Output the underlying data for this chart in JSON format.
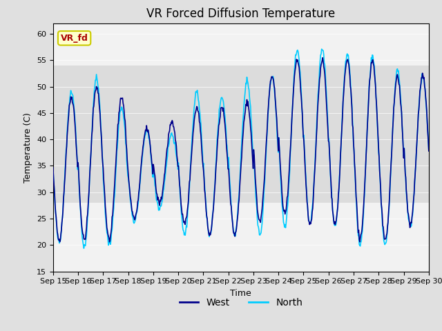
{
  "title": "VR Forced Diffusion Temperature",
  "xlabel": "Time",
  "ylabel": "Temperature (C)",
  "ylim": [
    15,
    62
  ],
  "xlim_start": 0,
  "xlim_end": 15,
  "yticks": [
    15,
    20,
    25,
    30,
    35,
    40,
    45,
    50,
    55,
    60
  ],
  "xtick_labels": [
    "Sep 15",
    "Sep 16",
    "Sep 17",
    "Sep 18",
    "Sep 19",
    "Sep 20",
    "Sep 21",
    "Sep 22",
    "Sep 23",
    "Sep 24",
    "Sep 25",
    "Sep 26",
    "Sep 27",
    "Sep 28",
    "Sep 29",
    "Sep 30"
  ],
  "west_color": "#00008B",
  "north_color": "#00CCFF",
  "background_color": "#E0E0E0",
  "plot_bg_color": "#F2F2F2",
  "annotation_text": "VR_fd",
  "annotation_bg": "#FFFFCC",
  "annotation_border": "#CCCC00",
  "annotation_text_color": "#AA0000",
  "shaded_band_lower": 28,
  "shaded_band_upper": 54,
  "shaded_band_color": "#DCDCDC",
  "title_fontsize": 12,
  "axis_label_fontsize": 9,
  "tick_fontsize": 8,
  "legend_fontsize": 10,
  "linewidth_west": 1.2,
  "linewidth_north": 1.2,
  "west_peaks": [
    48,
    50,
    48,
    42,
    43,
    46,
    46,
    47,
    52,
    55,
    55,
    55,
    55,
    52,
    52
  ],
  "north_peaks": [
    49,
    51.5,
    46,
    41.5,
    41,
    49,
    48,
    51,
    52,
    57,
    57,
    56,
    55.5,
    53,
    52
  ],
  "west_mins": [
    21,
    21,
    21,
    25,
    28,
    24,
    22,
    22,
    24.5,
    26,
    24,
    24,
    21,
    21,
    24
  ],
  "north_mins": [
    20.5,
    19.5,
    20,
    24.5,
    27,
    22,
    22,
    22,
    22,
    23.5,
    24,
    23.5,
    20,
    20,
    23.5
  ]
}
